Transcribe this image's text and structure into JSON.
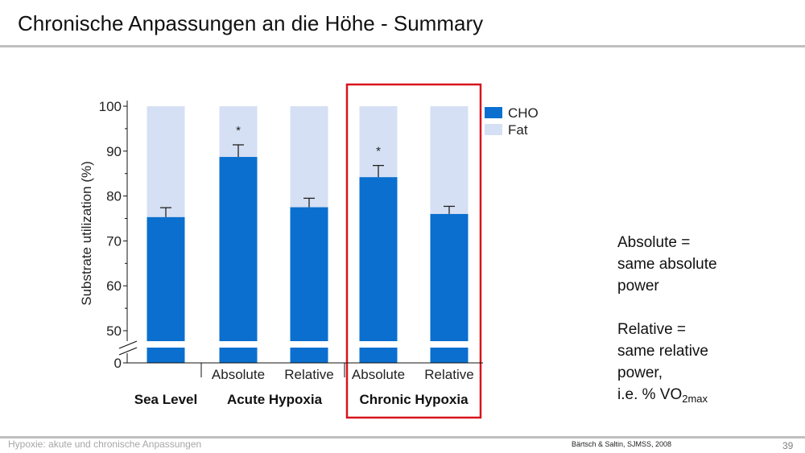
{
  "slide": {
    "title": "Chronische Anpassungen an die Höhe - Summary",
    "footer_left": "Hypoxie: akute und chronische Anpassungen",
    "citation": "Bärtsch & Saltin, SJMSS, 2008",
    "page_number": "39"
  },
  "notes": {
    "absolute_lines": [
      "Absolute =",
      "same absolute",
      "power"
    ],
    "relative_lines": [
      "Relative =",
      "same relative",
      "power,"
    ],
    "relative_last_prefix": "i.e. % VO",
    "relative_last_sub": "2max"
  },
  "colors": {
    "cho": "#0a6fcf",
    "fat": "#d6e0f4",
    "highlight_box": "#d8141b",
    "axis": "#111111",
    "rule": "#bfbfbf"
  },
  "chart_data": {
    "type": "bar",
    "stacked": true,
    "ylabel": "Substrate utilization (%)",
    "y_ticks": [
      0,
      50,
      60,
      70,
      80,
      90,
      100
    ],
    "ylim_broken": [
      0,
      50
    ],
    "ylim": [
      48,
      100
    ],
    "categories": [
      "Sea Level",
      "Absolute",
      "Relative",
      "Absolute",
      "Relative"
    ],
    "groups": [
      {
        "label": "Sea Level",
        "categories": [
          0
        ]
      },
      {
        "label": "Acute Hypoxia",
        "categories": [
          1,
          2
        ]
      },
      {
        "label": "Chronic Hypoxia",
        "categories": [
          3,
          4
        ]
      }
    ],
    "series": [
      {
        "name": "CHO",
        "values": [
          75.3,
          88.7,
          77.5,
          84.2,
          76.0
        ],
        "error": [
          2.1,
          2.7,
          2.0,
          2.6,
          1.7
        ]
      },
      {
        "name": "Fat",
        "values": [
          24.7,
          11.3,
          22.5,
          15.8,
          24.0
        ]
      }
    ],
    "significance": [
      "",
      "*",
      "",
      "*",
      ""
    ],
    "highlighted_group": "Chronic Hypoxia",
    "legend": [
      "CHO",
      "Fat"
    ],
    "legend_position": "top-right"
  }
}
